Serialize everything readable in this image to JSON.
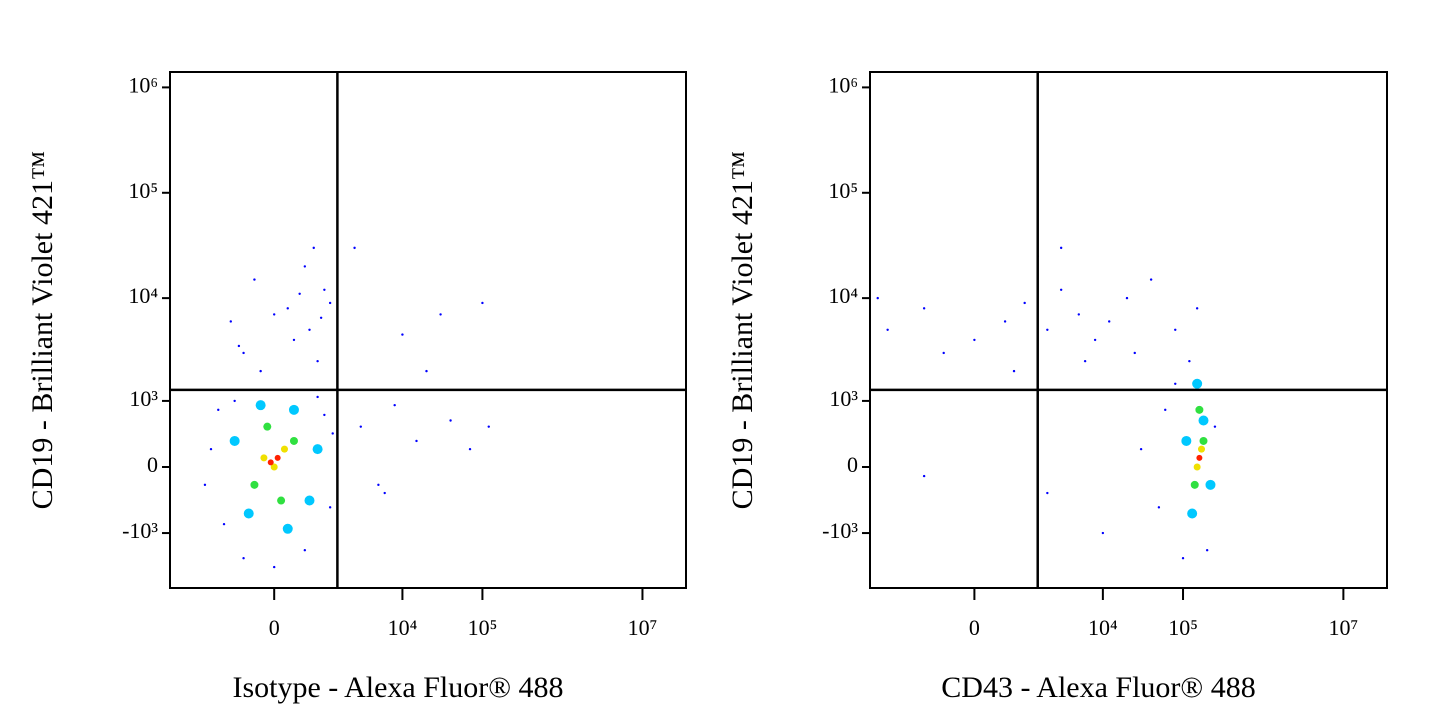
{
  "chart_data": [
    {
      "type": "scatter",
      "xlabel": "Isotype - Alexa Fluor® 488",
      "ylabel": "CD19 - Brilliant Violet 421™",
      "xscale": "asinh",
      "yscale": "asinh",
      "xlim": [
        -5000,
        35000000
      ],
      "ylim": [
        -3500,
        1400000
      ],
      "xticks": [
        0,
        {
          "value": 10000,
          "label": "10⁴"
        },
        {
          "value": 100000,
          "label": "10⁵"
        },
        {
          "value": 10000000,
          "label": "10⁷"
        }
      ],
      "yticks": [
        {
          "value": 1000000,
          "label": "10⁶"
        },
        {
          "value": 100000,
          "label": "10⁵"
        },
        {
          "value": 10000,
          "label": "10⁴"
        },
        {
          "value": 1000,
          "label": "10³"
        },
        0,
        {
          "value": -1000,
          "label": "-10³"
        }
      ],
      "gates": {
        "x": 1500,
        "y": 1300
      },
      "series": [
        {
          "color": "#0000ff",
          "x": [
            -500,
            200,
            600,
            1000,
            -800,
            300,
            800,
            -300,
            500,
            1200,
            0,
            -600,
            900,
            400,
            -200,
            700,
            -1500,
            -1000,
            1200,
            1000,
            -1200,
            500,
            -500,
            1300,
            -1800,
            0,
            800,
            -700,
            3000,
            5000,
            8000,
            15000,
            40000,
            70000,
            120000,
            10000,
            30000,
            100000,
            20000,
            2500,
            6000
          ],
          "y": [
            3000,
            8000,
            5000,
            12000,
            6000,
            4000,
            2500,
            15000,
            20000,
            9000,
            7000,
            3500,
            6500,
            11000,
            2000,
            30000,
            200,
            -800,
            -500,
            700,
            800,
            -1500,
            -1800,
            400,
            -200,
            -2200,
            1100,
            1000,
            500,
            -200,
            900,
            300,
            600,
            200,
            500,
            4500,
            7000,
            9000,
            2000,
            30000,
            -300
          ]
        },
        {
          "color": "#00c8ff",
          "x": [
            -400,
            600,
            300,
            -700,
            800,
            -200,
            200
          ],
          "y": [
            -600,
            -400,
            800,
            300,
            200,
            900,
            -900
          ]
        },
        {
          "color": "#30e040",
          "x": [
            -300,
            300,
            100,
            -100
          ],
          "y": [
            -200,
            300,
            -400,
            500
          ]
        },
        {
          "color": "#f0e000",
          "x": [
            0,
            150,
            -150
          ],
          "y": [
            0,
            200,
            100
          ]
        },
        {
          "color": "#ff2000",
          "x": [
            50,
            -50
          ],
          "y": [
            100,
            50
          ]
        }
      ]
    },
    {
      "type": "scatter",
      "xlabel": "CD43 - Alexa Fluor® 488",
      "ylabel": "CD19 - Brilliant Violet 421™",
      "xscale": "asinh",
      "yscale": "asinh",
      "xlim": [
        -5000,
        35000000
      ],
      "ylim": [
        -3500,
        1400000
      ],
      "xticks": [
        0,
        {
          "value": 10000,
          "label": "10⁴"
        },
        {
          "value": 100000,
          "label": "10⁵"
        },
        {
          "value": 10000000,
          "label": "10⁷"
        }
      ],
      "yticks": [
        {
          "value": 1000000,
          "label": "10⁶"
        },
        {
          "value": 100000,
          "label": "10⁵"
        },
        {
          "value": 10000,
          "label": "10⁴"
        },
        {
          "value": 1000,
          "label": "10³"
        },
        0,
        {
          "value": -1000,
          "label": "-10³"
        }
      ],
      "gates": {
        "x": 1500,
        "y": 1300
      },
      "series": [
        {
          "color": "#0000ff",
          "x": [
            -4000,
            -3000,
            -1000,
            0,
            500,
            1000,
            2000,
            3000,
            5000,
            8000,
            12000,
            20000,
            40000,
            80000,
            150000,
            1500,
            3000,
            -500,
            700,
            6000,
            25000,
            30000,
            50000,
            10000,
            60000,
            80000,
            200000,
            100000,
            -1000,
            2000,
            120000,
            250000
          ],
          "y": [
            10000,
            5000,
            8000,
            4000,
            6000,
            9000,
            5000,
            12000,
            7000,
            4000,
            6000,
            10000,
            15000,
            5000,
            8000,
            25000,
            30000,
            3000,
            2000,
            2500,
            3000,
            200,
            -500,
            -1000,
            800,
            1500,
            -1500,
            -1800,
            -100,
            -300,
            2500,
            500
          ]
        },
        {
          "color": "#00c8ff",
          "x": [
            130000,
            180000,
            150000,
            220000,
            110000
          ],
          "y": [
            -600,
            600,
            1500,
            -200,
            300
          ]
        },
        {
          "color": "#30e040",
          "x": [
            140000,
            180000,
            160000
          ],
          "y": [
            -200,
            300,
            800
          ]
        },
        {
          "color": "#f0e000",
          "x": [
            150000,
            170000
          ],
          "y": [
            0,
            200
          ]
        },
        {
          "color": "#ff2000",
          "x": [
            160000
          ],
          "y": [
            100
          ]
        }
      ]
    }
  ]
}
